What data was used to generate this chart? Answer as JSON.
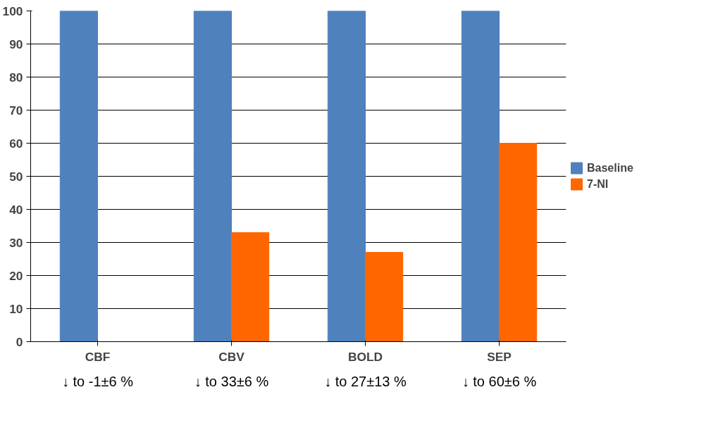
{
  "chart_data": {
    "type": "bar",
    "categories": [
      "CBF",
      "CBV",
      "BOLD",
      "SEP"
    ],
    "series": [
      {
        "name": "Baseline",
        "color": "#4f81bd",
        "values": [
          100,
          100,
          100,
          100
        ]
      },
      {
        "name": "7-NI",
        "color": "#ff6600",
        "values": [
          0,
          33,
          27,
          60
        ]
      }
    ],
    "ylim": [
      0,
      100
    ],
    "yticks": [
      0,
      10,
      20,
      30,
      40,
      50,
      60,
      70,
      80,
      90,
      100
    ],
    "grid": "y",
    "legend": "right",
    "annotations": [
      "↓ to -1±6 %",
      "↓ to 33±6 %",
      "↓ to 27±13 %",
      "↓ to 60±6 %"
    ]
  }
}
